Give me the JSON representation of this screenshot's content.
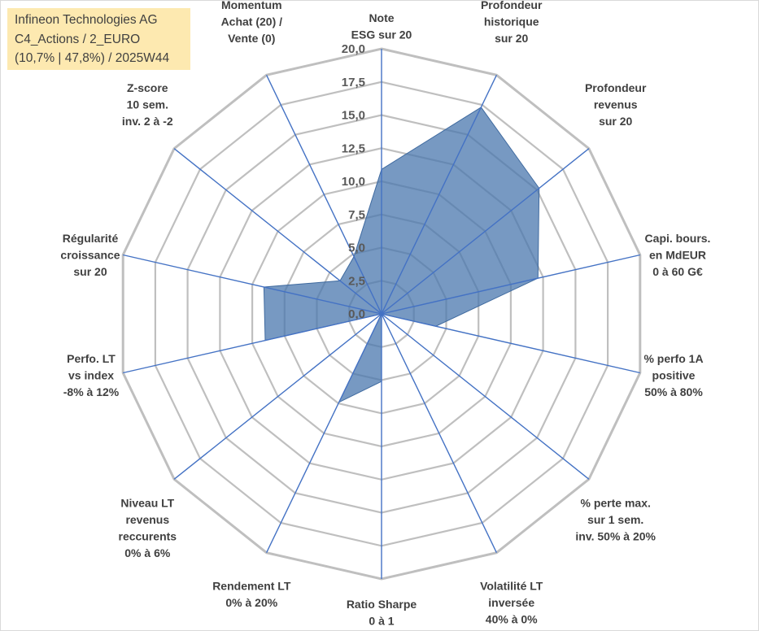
{
  "header": {
    "lines": [
      "Infineon Technologies AG",
      "C4_Actions / 2_EURO",
      "(10,7% | 47,8%) / 2025W44"
    ]
  },
  "colors": {
    "fill": "#4a77ad",
    "fill_opacity": 0.75,
    "spoke": "#4472c4",
    "grid": "#bfbfbf",
    "title_bg": "#fde9b0"
  },
  "chart_data": {
    "type": "radar",
    "title": "",
    "rmax": 20,
    "ticks": [
      "0,0",
      "2,5",
      "5,0",
      "7,5",
      "10,0",
      "12,5",
      "15,0",
      "17,5",
      "20,0"
    ],
    "categories": [
      [
        "Note",
        "ESG sur 20"
      ],
      [
        "Profondeur",
        "historique",
        "sur 20"
      ],
      [
        "Profondeur",
        "revenus",
        "sur 20"
      ],
      [
        "Capi. bours.",
        "en MdEUR",
        "0 à 60 G€"
      ],
      [
        "% perfo 1A",
        "positive",
        "50% à 80%"
      ],
      [
        "% perte max.",
        "sur 1 sem.",
        "inv. 50% à 20%"
      ],
      [
        "Volatilité LT",
        "inversée",
        "40% à 0%"
      ],
      [
        "Ratio Sharpe",
        "0 à 1"
      ],
      [
        "Rendement LT",
        "0% à 20%"
      ],
      [
        "Niveau LT",
        "revenus",
        "reccurents",
        "0% à 6%"
      ],
      [
        "Perfo. LT",
        "vs index",
        "-8% à 12%"
      ],
      [
        "Régularité",
        "croissance",
        "sur 20"
      ],
      [
        "Z-score",
        "10 sem.",
        "inv. 2 à -2"
      ],
      [
        "Momentum",
        "Achat (20) /",
        "Vente (0)"
      ]
    ],
    "series": [
      {
        "values": [
          10.9,
          17.3,
          15.2,
          12.1,
          4.2,
          0,
          0,
          5.1,
          7.4,
          0,
          9.0,
          9.1,
          4.0,
          4.8
        ]
      }
    ],
    "grid": true,
    "legend": "none"
  }
}
